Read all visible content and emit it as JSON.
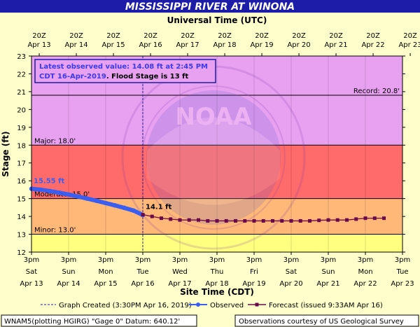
{
  "chart_data": {
    "type": "line",
    "title": "MISSISSIPPI RIVER AT WINONA",
    "top_axis_title": "Universal Time (UTC)",
    "xlabel": "Site Time (CDT)",
    "ylabel": "Stage (ft)",
    "ylim": [
      12,
      23
    ],
    "yticks": [
      12,
      13,
      14,
      15,
      16,
      17,
      18,
      19,
      20,
      21,
      22,
      23
    ],
    "x_range_hours": [
      0,
      240
    ],
    "x_start_label": "3pm Apr 13",
    "bottom_ticks": [
      {
        "l1": "3pm",
        "l2": "Sat",
        "l3": "Apr 13"
      },
      {
        "l1": "3pm",
        "l2": "Sun",
        "l3": "Apr 14"
      },
      {
        "l1": "3pm",
        "l2": "Mon",
        "l3": "Apr 15"
      },
      {
        "l1": "3pm",
        "l2": "Tue",
        "l3": "Apr 16"
      },
      {
        "l1": "3pm",
        "l2": "Wed",
        "l3": "Apr 17"
      },
      {
        "l1": "3pm",
        "l2": "Thu",
        "l3": "Apr 18"
      },
      {
        "l1": "3pm",
        "l2": "Fri",
        "l3": "Apr 19"
      },
      {
        "l1": "3pm",
        "l2": "Sat",
        "l3": "Apr 20"
      },
      {
        "l1": "3pm",
        "l2": "Sun",
        "l3": "Apr 21"
      },
      {
        "l1": "3pm",
        "l2": "Mon",
        "l3": "Apr 22"
      },
      {
        "l1": "3pm",
        "l2": "Tue",
        "l3": "Apr 23"
      }
    ],
    "top_ticks": [
      {
        "l1": "20Z",
        "l2": "Apr 13"
      },
      {
        "l1": "20Z",
        "l2": "Apr 14"
      },
      {
        "l1": "20Z",
        "l2": "Apr 15"
      },
      {
        "l1": "20Z",
        "l2": "Apr 16"
      },
      {
        "l1": "20Z",
        "l2": "Apr 17"
      },
      {
        "l1": "20Z",
        "l2": "Apr 18"
      },
      {
        "l1": "20Z",
        "l2": "Apr 19"
      },
      {
        "l1": "20Z",
        "l2": "Apr 20"
      },
      {
        "l1": "20Z",
        "l2": "Apr 21"
      },
      {
        "l1": "20Z",
        "l2": "Apr 22"
      },
      {
        "l1": "20Z",
        "l2": "Apr 23"
      }
    ],
    "bands": [
      {
        "name": "record",
        "from": 20.8,
        "to": 23,
        "color": "#e8a0f0"
      },
      {
        "name": "major",
        "from": 18.0,
        "to": 20.8,
        "color": "#e8a0f0"
      },
      {
        "name": "moderate",
        "from": 15.0,
        "to": 18.0,
        "color": "#ff6a6a"
      },
      {
        "name": "flood",
        "from": 13.0,
        "to": 15.0,
        "color": "#ffb878"
      },
      {
        "name": "action",
        "from": 12.0,
        "to": 13.0,
        "color": "#ffff80"
      }
    ],
    "thresholds": [
      {
        "label": "Record: 20.8'",
        "value": 20.8,
        "align": "right"
      },
      {
        "label": "Major: 18.0'",
        "value": 18.0,
        "align": "left"
      },
      {
        "label": "Moderate: 15.0'",
        "value": 15.0,
        "align": "left"
      },
      {
        "label": "Minor: 13.0'",
        "value": 13.0,
        "align": "left"
      }
    ],
    "current_time_hours": 72,
    "series": [
      {
        "name": "Observed",
        "color": "#3a5ef0",
        "points": [
          [
            0,
            15.55
          ],
          [
            6,
            15.5
          ],
          [
            12,
            15.42
          ],
          [
            18,
            15.33
          ],
          [
            24,
            15.23
          ],
          [
            30,
            15.12
          ],
          [
            36,
            15.0
          ],
          [
            42,
            14.88
          ],
          [
            48,
            14.75
          ],
          [
            54,
            14.62
          ],
          [
            60,
            14.48
          ],
          [
            66,
            14.33
          ],
          [
            72,
            14.08
          ]
        ]
      },
      {
        "name": "Forecast",
        "color": "#6a0a4a",
        "points": [
          [
            72,
            14.1
          ],
          [
            78,
            14.0
          ],
          [
            84,
            13.9
          ],
          [
            90,
            13.85
          ],
          [
            96,
            13.8
          ],
          [
            102,
            13.8
          ],
          [
            108,
            13.8
          ],
          [
            114,
            13.75
          ],
          [
            120,
            13.75
          ],
          [
            126,
            13.75
          ],
          [
            132,
            13.75
          ],
          [
            138,
            13.75
          ],
          [
            144,
            13.75
          ],
          [
            150,
            13.75
          ],
          [
            156,
            13.75
          ],
          [
            162,
            13.75
          ],
          [
            168,
            13.75
          ],
          [
            174,
            13.75
          ],
          [
            180,
            13.75
          ],
          [
            186,
            13.78
          ],
          [
            192,
            13.8
          ],
          [
            198,
            13.8
          ],
          [
            204,
            13.8
          ],
          [
            210,
            13.85
          ],
          [
            216,
            13.9
          ],
          [
            222,
            13.9
          ],
          [
            228,
            13.9
          ]
        ]
      }
    ],
    "data_labels": [
      {
        "text": "15.55 ft",
        "color": "#3a5ef0",
        "x": 0,
        "y": 15.55
      },
      {
        "text": "14.1 ft",
        "color": "#000000",
        "x": 72,
        "y": 14.1
      }
    ],
    "info_box": {
      "line1": "Latest observed value: 14.08 ft at 2:45 PM",
      "line2a": "CDT 16-Apr-2019",
      "line2b": ". Flood Stage is 13 ft"
    },
    "legend": {
      "created_label": "Graph Created (3:30PM Apr 16, 2019)",
      "observed_label": "Observed",
      "forecast_label": "Forecast (issued 9:33AM Apr 16)"
    },
    "footer": {
      "left": "WNAM5(plotting HGIRG) \"Gage 0\" Datum: 640.12'",
      "right": "Observations courtesy of US Geological Survey"
    },
    "colors": {
      "title_bar": "#1c1ca8",
      "title_text": "#ffffff",
      "background": "#ffffcc",
      "info_text": "#3a3aee"
    }
  }
}
